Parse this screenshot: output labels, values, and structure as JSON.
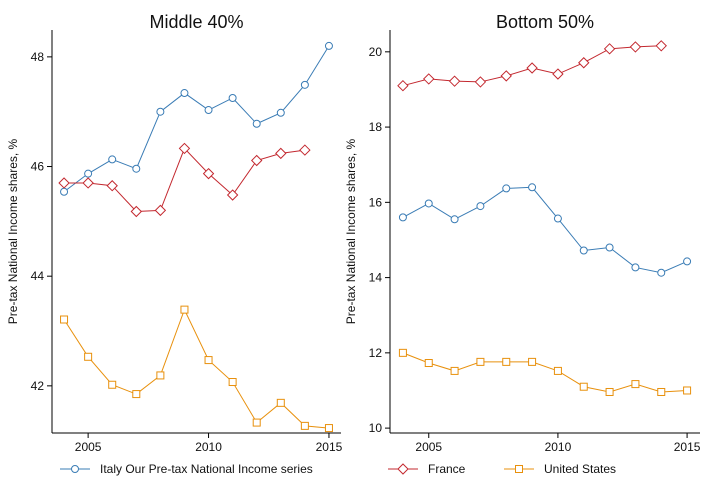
{
  "chart_data": [
    {
      "type": "line",
      "title": "Middle 40%",
      "y_label": "Pre-tax National Income shares, %",
      "x": [
        2004,
        2005,
        2006,
        2007,
        2008,
        2009,
        2010,
        2011,
        2012,
        2013,
        2014,
        2015
      ],
      "xlim": [
        2003.5,
        2015.5
      ],
      "ylim": [
        41.14,
        48.49
      ],
      "xticks": [
        2005,
        2010,
        2015
      ],
      "yticks": [
        42,
        44,
        46,
        48
      ],
      "series": [
        {
          "name": "Italy Our Pre-tax National Income series",
          "color": "#3a7cb5",
          "marker": "circle",
          "values": [
            45.54,
            45.87,
            46.13,
            45.96,
            47.0,
            47.34,
            47.03,
            47.25,
            46.78,
            46.98,
            47.49,
            48.2
          ]
        },
        {
          "name": "France",
          "color": "#c3282f",
          "marker": "diamond",
          "values": [
            45.7,
            45.7,
            45.65,
            45.18,
            45.2,
            46.33,
            45.87,
            45.48,
            46.11,
            46.24,
            46.3,
            null
          ]
        },
        {
          "name": "United States",
          "color": "#e8900c",
          "marker": "square",
          "values": [
            43.21,
            42.53,
            42.02,
            41.85,
            42.19,
            43.39,
            42.47,
            42.07,
            41.33,
            41.69,
            41.27,
            41.23
          ]
        }
      ]
    },
    {
      "type": "line",
      "title": "Bottom 50%",
      "y_label": "Pre-tax National Income shares, %",
      "x": [
        2004,
        2005,
        2006,
        2007,
        2008,
        2009,
        2010,
        2011,
        2012,
        2013,
        2014,
        2015
      ],
      "xlim": [
        2003.5,
        2015.5
      ],
      "ylim": [
        9.87,
        20.58
      ],
      "xticks": [
        2005,
        2010,
        2015
      ],
      "yticks": [
        10,
        12,
        14,
        16,
        18,
        20
      ],
      "series": [
        {
          "color": "#3a7cb5",
          "marker": "circle",
          "values": [
            15.6,
            15.97,
            15.55,
            15.9,
            16.37,
            16.4,
            15.57,
            14.72,
            14.8,
            14.27,
            14.13,
            14.43
          ]
        },
        {
          "color": "#c3282f",
          "marker": "diamond",
          "values": [
            19.1,
            19.28,
            19.22,
            19.2,
            19.36,
            19.57,
            19.41,
            19.71,
            20.08,
            20.13,
            20.16,
            null
          ]
        },
        {
          "color": "#e8900c",
          "marker": "square",
          "values": [
            12.0,
            11.73,
            11.52,
            11.76,
            11.76,
            11.76,
            11.52,
            11.1,
            10.96,
            11.17,
            10.96,
            11.0
          ]
        }
      ]
    }
  ]
}
